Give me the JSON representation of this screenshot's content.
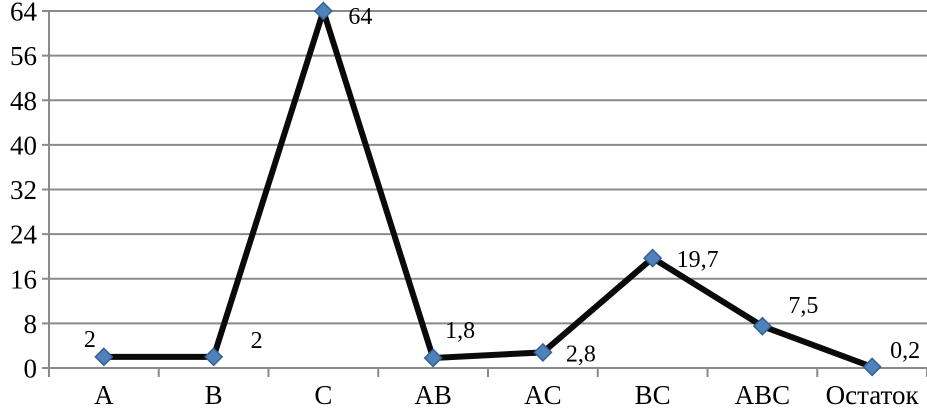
{
  "chart_data": {
    "type": "line",
    "title": "",
    "xlabel": "",
    "ylabel": "",
    "categories": [
      "A",
      "B",
      "C",
      "AB",
      "AC",
      "BC",
      "ABC",
      "Остаток"
    ],
    "values": [
      2,
      2,
      64,
      1.8,
      2.8,
      19.7,
      7.5,
      0.2
    ],
    "point_labels": [
      "2",
      "2",
      "64",
      "1,8",
      "2,8",
      "19,7",
      "7,5",
      "0,2"
    ],
    "ylim": [
      0,
      64
    ],
    "ytick_step": 8,
    "ytick_labels": [
      "0",
      "8",
      "16",
      "24",
      "32",
      "40",
      "48",
      "56",
      "64"
    ],
    "grid": true,
    "legend_position": "none",
    "colors": {
      "line": "#0a0a0a",
      "marker_fill": "#4f81bd",
      "marker_stroke": "#36618e",
      "gridline": "#8a8a8a",
      "axis": "#8a8a8a",
      "text": "#000000"
    }
  }
}
